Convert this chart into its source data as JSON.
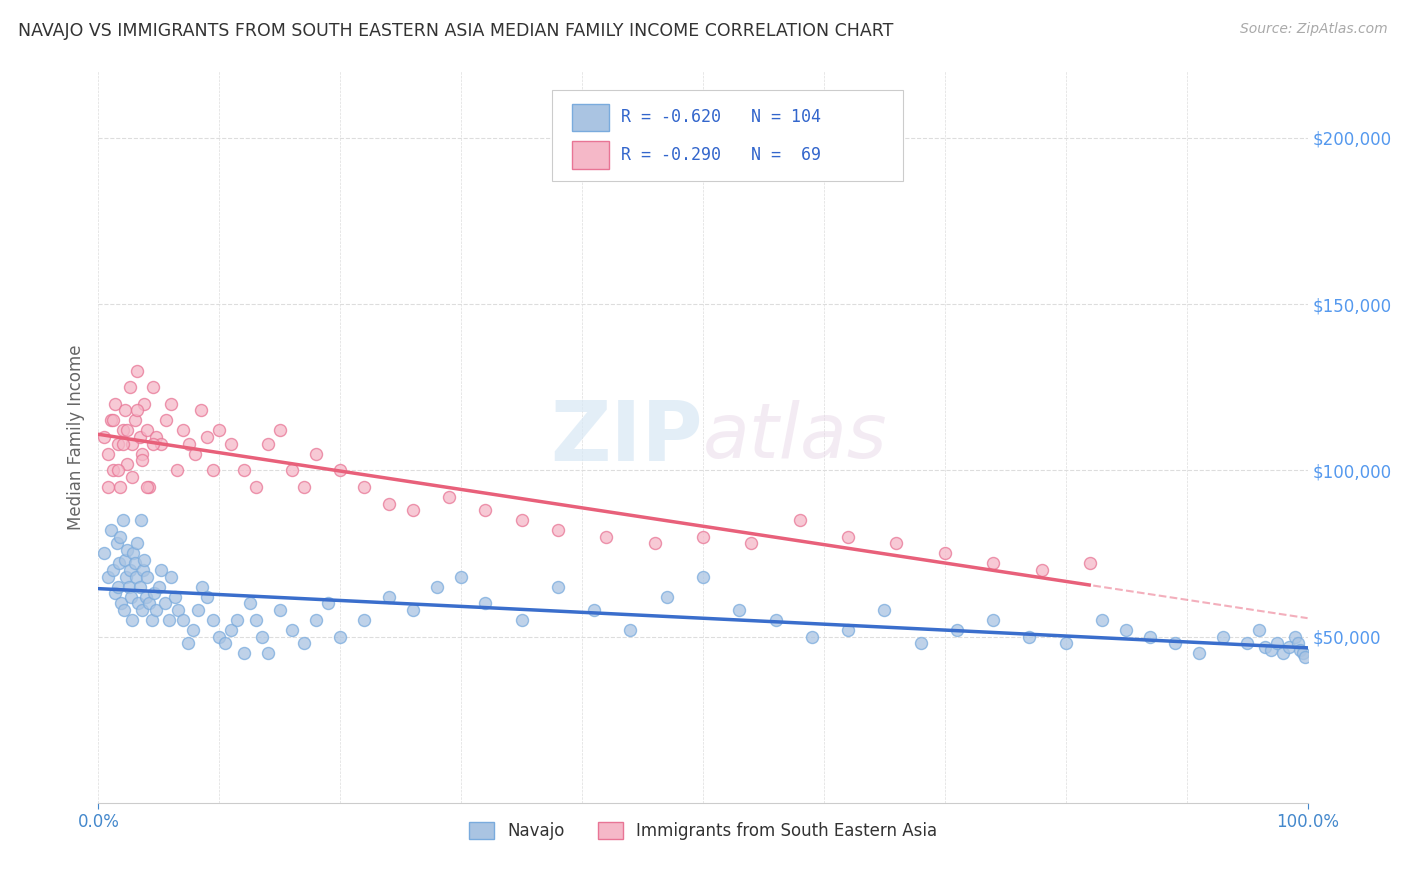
{
  "title": "NAVAJO VS IMMIGRANTS FROM SOUTH EASTERN ASIA MEDIAN FAMILY INCOME CORRELATION CHART",
  "source": "Source: ZipAtlas.com",
  "ylabel": "Median Family Income",
  "x_min": 0.0,
  "x_max": 1.0,
  "y_min": 0,
  "y_max": 220000,
  "y_tick_values": [
    50000,
    100000,
    150000,
    200000
  ],
  "navajo_color": "#aac4e2",
  "navajo_edge_color": "#7aabdd",
  "immigrant_color": "#f5b8c8",
  "immigrant_edge_color": "#e87595",
  "navajo_line_color": "#3a6ecc",
  "immigrant_line_color": "#e8607a",
  "background_color": "#ffffff",
  "grid_color": "#dddddd",
  "title_color": "#333333",
  "axis_label_color": "#666666",
  "right_label_color": "#5599ee",
  "watermark_zip": "ZIP",
  "watermark_atlas": "atlas",
  "navajo_x": [
    0.005,
    0.008,
    0.01,
    0.012,
    0.014,
    0.015,
    0.016,
    0.017,
    0.018,
    0.019,
    0.02,
    0.021,
    0.022,
    0.023,
    0.024,
    0.025,
    0.026,
    0.027,
    0.028,
    0.029,
    0.03,
    0.031,
    0.032,
    0.033,
    0.034,
    0.035,
    0.036,
    0.037,
    0.038,
    0.039,
    0.04,
    0.042,
    0.044,
    0.046,
    0.048,
    0.05,
    0.052,
    0.055,
    0.058,
    0.06,
    0.063,
    0.066,
    0.07,
    0.074,
    0.078,
    0.082,
    0.086,
    0.09,
    0.095,
    0.1,
    0.105,
    0.11,
    0.115,
    0.12,
    0.125,
    0.13,
    0.135,
    0.14,
    0.15,
    0.16,
    0.17,
    0.18,
    0.19,
    0.2,
    0.22,
    0.24,
    0.26,
    0.28,
    0.3,
    0.32,
    0.35,
    0.38,
    0.41,
    0.44,
    0.47,
    0.5,
    0.53,
    0.56,
    0.59,
    0.62,
    0.65,
    0.68,
    0.71,
    0.74,
    0.77,
    0.8,
    0.83,
    0.85,
    0.87,
    0.89,
    0.91,
    0.93,
    0.95,
    0.96,
    0.965,
    0.97,
    0.975,
    0.98,
    0.985,
    0.99,
    0.992,
    0.994,
    0.996,
    0.998
  ],
  "navajo_y": [
    75000,
    68000,
    82000,
    70000,
    63000,
    78000,
    65000,
    72000,
    80000,
    60000,
    85000,
    58000,
    73000,
    68000,
    76000,
    65000,
    70000,
    62000,
    55000,
    75000,
    72000,
    68000,
    78000,
    60000,
    65000,
    85000,
    58000,
    70000,
    73000,
    62000,
    68000,
    60000,
    55000,
    63000,
    58000,
    65000,
    70000,
    60000,
    55000,
    68000,
    62000,
    58000,
    55000,
    48000,
    52000,
    58000,
    65000,
    62000,
    55000,
    50000,
    48000,
    52000,
    55000,
    45000,
    60000,
    55000,
    50000,
    45000,
    58000,
    52000,
    48000,
    55000,
    60000,
    50000,
    55000,
    62000,
    58000,
    65000,
    68000,
    60000,
    55000,
    65000,
    58000,
    52000,
    62000,
    68000,
    58000,
    55000,
    50000,
    52000,
    58000,
    48000,
    52000,
    55000,
    50000,
    48000,
    55000,
    52000,
    50000,
    48000,
    45000,
    50000,
    48000,
    52000,
    47000,
    46000,
    48000,
    45000,
    47000,
    50000,
    48000,
    46000,
    45000,
    44000
  ],
  "immigrant_x": [
    0.005,
    0.008,
    0.01,
    0.012,
    0.014,
    0.016,
    0.018,
    0.02,
    0.022,
    0.024,
    0.026,
    0.028,
    0.03,
    0.032,
    0.034,
    0.036,
    0.038,
    0.04,
    0.042,
    0.045,
    0.048,
    0.052,
    0.056,
    0.06,
    0.065,
    0.07,
    0.075,
    0.08,
    0.085,
    0.09,
    0.095,
    0.1,
    0.11,
    0.12,
    0.13,
    0.14,
    0.15,
    0.16,
    0.17,
    0.18,
    0.2,
    0.22,
    0.24,
    0.26,
    0.29,
    0.32,
    0.35,
    0.38,
    0.42,
    0.46,
    0.5,
    0.54,
    0.58,
    0.62,
    0.66,
    0.7,
    0.74,
    0.78,
    0.82,
    0.008,
    0.012,
    0.016,
    0.02,
    0.024,
    0.028,
    0.032,
    0.036,
    0.04,
    0.045
  ],
  "immigrant_y": [
    110000,
    105000,
    115000,
    100000,
    120000,
    108000,
    95000,
    112000,
    118000,
    102000,
    125000,
    108000,
    115000,
    130000,
    110000,
    105000,
    120000,
    112000,
    95000,
    125000,
    110000,
    108000,
    115000,
    120000,
    100000,
    112000,
    108000,
    105000,
    118000,
    110000,
    100000,
    112000,
    108000,
    100000,
    95000,
    108000,
    112000,
    100000,
    95000,
    105000,
    100000,
    95000,
    90000,
    88000,
    92000,
    88000,
    85000,
    82000,
    80000,
    78000,
    80000,
    78000,
    85000,
    80000,
    78000,
    75000,
    72000,
    70000,
    72000,
    95000,
    115000,
    100000,
    108000,
    112000,
    98000,
    118000,
    103000,
    95000,
    108000
  ],
  "marker_size": 75,
  "marker_alpha": 0.75,
  "line_width": 2.5
}
